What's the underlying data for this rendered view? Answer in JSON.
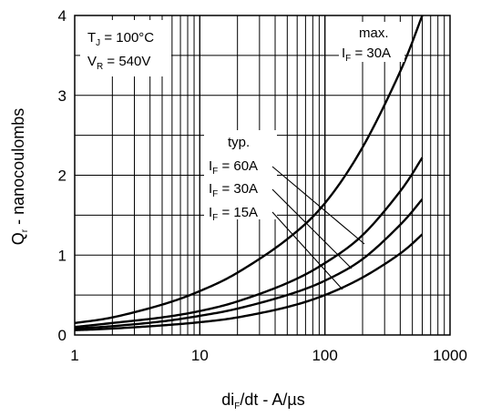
{
  "chart_data": {
    "type": "line",
    "xscale": "log",
    "xlim": [
      1,
      1000
    ],
    "ylim": [
      0,
      4
    ],
    "grid": true,
    "x_ticks": [
      "1",
      "10",
      "100",
      "1000"
    ],
    "y_ticks": [
      "0",
      "1",
      "2",
      "3",
      "4"
    ],
    "xlabel": {
      "main": "di",
      "sub": "F",
      "rest": "/dt - A/µs"
    },
    "ylabel": {
      "main": "Q",
      "sub": "r",
      "rest": " - nanocoulombs"
    },
    "conditions": [
      {
        "main": "T",
        "sub": "J",
        "rest": " = 100°C"
      },
      {
        "main": "V",
        "sub": "R",
        "rest": " = 540V"
      }
    ],
    "annotations": {
      "max": {
        "title": "max.",
        "main": "I",
        "sub": "F",
        "rest": " = 30A"
      },
      "typ": {
        "title": "typ.",
        "labels": [
          {
            "main": "I",
            "sub": "F",
            "rest": " = 60A"
          },
          {
            "main": "I",
            "sub": "F",
            "rest": " = 30A"
          },
          {
            "main": "I",
            "sub": "F",
            "rest": " = 15A"
          }
        ]
      }
    },
    "series": [
      {
        "x": [
          1,
          2,
          5,
          10,
          20,
          50,
          100,
          200,
          400,
          600
        ],
        "values": [
          0.15,
          0.22,
          0.38,
          0.55,
          0.78,
          1.2,
          1.65,
          2.35,
          3.3,
          4.0
        ]
      },
      {
        "x": [
          1,
          2,
          5,
          10,
          20,
          50,
          100,
          200,
          400,
          600
        ],
        "values": [
          0.1,
          0.15,
          0.22,
          0.3,
          0.42,
          0.65,
          0.9,
          1.25,
          1.8,
          2.22
        ]
      },
      {
        "x": [
          1,
          2,
          5,
          10,
          20,
          50,
          100,
          200,
          400,
          600
        ],
        "values": [
          0.08,
          0.11,
          0.17,
          0.24,
          0.33,
          0.5,
          0.68,
          0.95,
          1.38,
          1.7
        ]
      },
      {
        "x": [
          1,
          2,
          5,
          10,
          20,
          50,
          100,
          200,
          400,
          600
        ],
        "values": [
          0.06,
          0.08,
          0.12,
          0.16,
          0.22,
          0.35,
          0.5,
          0.72,
          1.02,
          1.26
        ]
      }
    ]
  }
}
